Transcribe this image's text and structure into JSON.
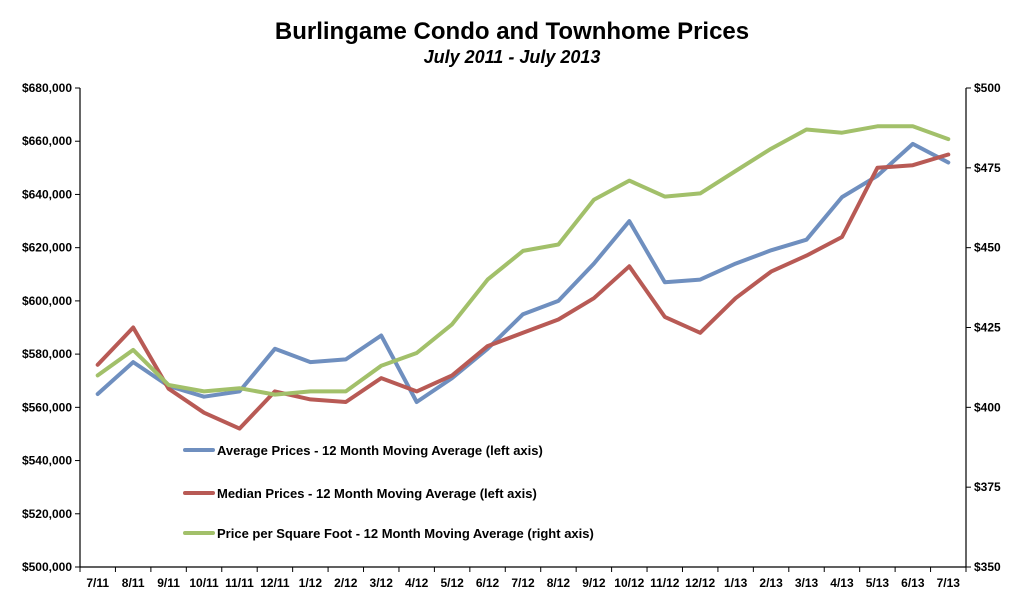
{
  "chart_data": {
    "type": "line",
    "title": "Burlingame Condo and Townhome Prices",
    "subtitle": "July 2011 - July 2013",
    "categories": [
      "7/11",
      "8/11",
      "9/11",
      "10/11",
      "11/11",
      "12/11",
      "1/12",
      "2/12",
      "3/12",
      "4/12",
      "5/12",
      "6/12",
      "7/12",
      "8/12",
      "9/12",
      "10/12",
      "11/12",
      "12/12",
      "1/13",
      "2/13",
      "3/13",
      "4/13",
      "5/13",
      "6/13",
      "7/13"
    ],
    "left_axis": {
      "ylim": [
        500000,
        680000
      ],
      "ticks": [
        500000,
        520000,
        540000,
        560000,
        580000,
        600000,
        620000,
        640000,
        660000,
        680000
      ],
      "tick_labels": [
        "$500,000",
        "$520,000",
        "$540,000",
        "$560,000",
        "$580,000",
        "$600,000",
        "$620,000",
        "$640,000",
        "$660,000",
        "$680,000"
      ]
    },
    "right_axis": {
      "ylim": [
        350,
        500
      ],
      "ticks": [
        350,
        375,
        400,
        425,
        450,
        475,
        500
      ],
      "tick_labels": [
        "$350",
        "$375",
        "$400",
        "$425",
        "$450",
        "$475",
        "$500"
      ]
    },
    "series": [
      {
        "name": "Average Prices - 12 Month Moving Average (left axis)",
        "axis": "left",
        "color": "#6f8fbf",
        "values": [
          565000,
          577000,
          568000,
          564000,
          566000,
          582000,
          577000,
          578000,
          587000,
          562000,
          571000,
          582000,
          595000,
          600000,
          614000,
          630000,
          607000,
          608000,
          614000,
          619000,
          623000,
          639000,
          647000,
          659000,
          652000
        ]
      },
      {
        "name": "Median Prices - 12 Month Moving Average (left axis)",
        "axis": "left",
        "color": "#b85a55",
        "values": [
          576000,
          590000,
          567000,
          558000,
          552000,
          566000,
          563000,
          562000,
          571000,
          566000,
          572000,
          583000,
          588000,
          593000,
          601000,
          613000,
          594000,
          588000,
          601000,
          611000,
          617000,
          624000,
          650000,
          651000,
          655000
        ]
      },
      {
        "name": "Price per Square Foot - 12 Month Moving Average (right axis)",
        "axis": "right",
        "color": "#a2c06a",
        "values": [
          410,
          418,
          407,
          405,
          406,
          404,
          405,
          405,
          413,
          417,
          426,
          440,
          449,
          451,
          465,
          471,
          466,
          467,
          474,
          481,
          487,
          486,
          488,
          488,
          484
        ]
      }
    ],
    "grid": false,
    "legend_position": "bottom-left-inside"
  }
}
